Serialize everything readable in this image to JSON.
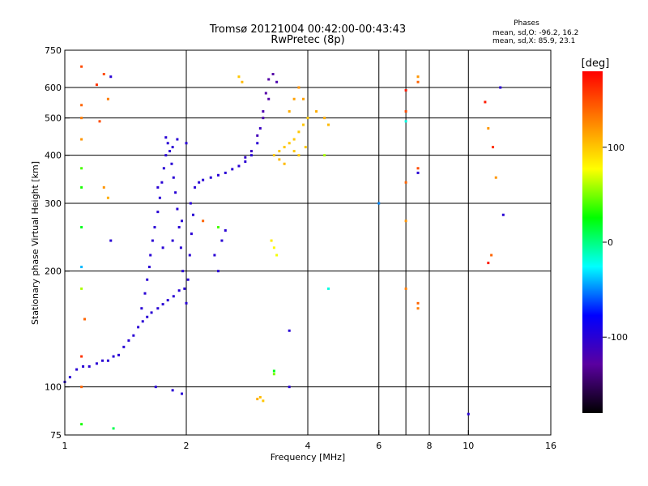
{
  "chart_data": {
    "type": "scatter",
    "title": "Tromsø 20121004 00:42:00-00:43:43",
    "subtitle": "RwPretec (8p)",
    "stats": {
      "heading": "Phases",
      "line1": "mean, sd,O: -96.2, 16.2",
      "line2": "mean, sd,X: 85.9, 23.1"
    },
    "xlabel": "Frequency [MHz]",
    "ylabel": "Stationary phase Virtual Height [km]",
    "x_scale": "log",
    "y_scale": "log",
    "xlim": [
      1,
      16
    ],
    "ylim": [
      75,
      750
    ],
    "x_ticks": [
      1,
      2,
      4,
      6,
      8,
      10,
      16
    ],
    "y_ticks": [
      75,
      100,
      200,
      300,
      400,
      500,
      600,
      750
    ],
    "x_grid": [
      2,
      4,
      6,
      7,
      8,
      10
    ],
    "y_grid": [
      100,
      200,
      300,
      400,
      500,
      600
    ],
    "grid": true,
    "colorbar": {
      "label": "[deg]",
      "range": [
        -180,
        180
      ],
      "ticks": [
        100,
        0,
        -100
      ],
      "stops": [
        "#000000",
        "#5a00a0",
        "#0000ff",
        "#00ffff",
        "#00ff00",
        "#ffff00",
        "#ff8000",
        "#ff0000"
      ]
    },
    "series": [
      {
        "points": [
          [
            1.0,
            103,
            -100
          ],
          [
            1.03,
            106,
            -100
          ],
          [
            1.07,
            111,
            -100
          ],
          [
            1.11,
            113,
            -100
          ],
          [
            1.15,
            113,
            -100
          ],
          [
            1.2,
            115,
            -100
          ],
          [
            1.24,
            117,
            -100
          ],
          [
            1.28,
            117,
            -100
          ],
          [
            1.32,
            120,
            -100
          ],
          [
            1.36,
            121,
            -100
          ],
          [
            1.4,
            127,
            -100
          ],
          [
            1.44,
            132,
            -100
          ],
          [
            1.48,
            136,
            -100
          ],
          [
            1.52,
            143,
            -100
          ],
          [
            1.56,
            148,
            -100
          ],
          [
            1.6,
            152,
            -100
          ],
          [
            1.64,
            156,
            -100
          ],
          [
            1.7,
            160,
            -100
          ],
          [
            1.75,
            164,
            -100
          ],
          [
            1.8,
            168,
            -100
          ],
          [
            1.86,
            172,
            -100
          ],
          [
            1.92,
            178,
            -100
          ],
          [
            1.55,
            160,
            -100
          ],
          [
            1.58,
            175,
            -100
          ],
          [
            1.6,
            190,
            -100
          ],
          [
            1.62,
            205,
            -100
          ],
          [
            1.63,
            220,
            -100
          ],
          [
            1.65,
            240,
            -100
          ],
          [
            1.67,
            260,
            -100
          ],
          [
            1.7,
            285,
            -100
          ],
          [
            1.72,
            310,
            -100
          ],
          [
            1.74,
            340,
            -100
          ],
          [
            1.76,
            370,
            -100
          ],
          [
            1.78,
            400,
            -100
          ],
          [
            1.8,
            430,
            -100
          ],
          [
            1.82,
            410,
            -100
          ],
          [
            1.84,
            380,
            -100
          ],
          [
            1.86,
            350,
            -100
          ],
          [
            1.88,
            320,
            -100
          ],
          [
            1.9,
            290,
            -100
          ],
          [
            1.92,
            260,
            -100
          ],
          [
            1.94,
            230,
            -100
          ],
          [
            1.96,
            200,
            -100
          ],
          [
            1.98,
            180,
            -100
          ],
          [
            2.0,
            165,
            -100
          ],
          [
            2.02,
            190,
            -100
          ],
          [
            2.04,
            220,
            -100
          ],
          [
            2.06,
            250,
            -100
          ],
          [
            2.08,
            280,
            -100
          ],
          [
            2.1,
            330,
            -100
          ],
          [
            2.15,
            340,
            -100
          ],
          [
            2.2,
            345,
            -100
          ],
          [
            2.3,
            350,
            -100
          ],
          [
            2.4,
            355,
            -100
          ],
          [
            2.5,
            360,
            -100
          ],
          [
            2.6,
            368,
            -100
          ],
          [
            2.7,
            375,
            -100
          ],
          [
            2.8,
            385,
            -100
          ],
          [
            2.9,
            400,
            -100
          ],
          [
            3.0,
            430,
            -100
          ],
          [
            3.05,
            470,
            -110
          ],
          [
            3.1,
            520,
            -120
          ],
          [
            3.15,
            580,
            -125
          ],
          [
            3.2,
            630,
            -125
          ],
          [
            3.28,
            650,
            -125
          ],
          [
            3.35,
            620,
            -120
          ],
          [
            3.2,
            560,
            -125
          ],
          [
            3.1,
            500,
            -120
          ],
          [
            3.0,
            450,
            -115
          ],
          [
            2.9,
            410,
            -110
          ],
          [
            2.8,
            395,
            -105
          ],
          [
            1.7,
            330,
            -100
          ],
          [
            1.75,
            230,
            -100
          ],
          [
            1.85,
            240,
            -100
          ],
          [
            1.95,
            270,
            -100
          ],
          [
            2.05,
            300,
            -100
          ],
          [
            2.0,
            430,
            -100
          ],
          [
            1.9,
            440,
            -100
          ],
          [
            1.85,
            420,
            -100
          ],
          [
            1.78,
            445,
            -100
          ],
          [
            2.35,
            220,
            -100
          ],
          [
            2.4,
            200,
            -100
          ],
          [
            2.45,
            240,
            -100
          ],
          [
            2.5,
            255,
            -100
          ],
          [
            1.68,
            100,
            -100
          ],
          [
            1.85,
            98,
            -100
          ],
          [
            1.95,
            96,
            -100
          ]
        ]
      },
      {
        "points": [
          [
            3.3,
            400,
            100
          ],
          [
            3.4,
            410,
            100
          ],
          [
            3.5,
            420,
            100
          ],
          [
            3.6,
            430,
            100
          ],
          [
            3.7,
            440,
            100
          ],
          [
            3.8,
            460,
            100
          ],
          [
            3.9,
            480,
            100
          ],
          [
            4.0,
            500,
            100
          ],
          [
            3.6,
            520,
            110
          ],
          [
            3.7,
            560,
            115
          ],
          [
            3.8,
            600,
            120
          ],
          [
            3.9,
            560,
            115
          ],
          [
            4.2,
            520,
            110
          ],
          [
            4.4,
            500,
            110
          ],
          [
            4.5,
            480,
            105
          ],
          [
            3.5,
            380,
            105
          ],
          [
            3.4,
            390,
            105
          ],
          [
            3.7,
            410,
            100
          ],
          [
            3.8,
            400,
            100
          ],
          [
            3.95,
            420,
            100
          ],
          [
            3.3,
            230,
            80
          ],
          [
            3.35,
            220,
            75
          ],
          [
            3.25,
            240,
            85
          ],
          [
            3.1,
            92,
            100
          ],
          [
            3.05,
            94,
            105
          ],
          [
            3.0,
            93,
            110
          ],
          [
            2.7,
            640,
            100
          ],
          [
            2.75,
            620,
            105
          ]
        ]
      },
      {
        "points": [
          [
            1.1,
            680,
            150
          ],
          [
            1.1,
            540,
            140
          ],
          [
            1.1,
            500,
            130
          ],
          [
            1.1,
            440,
            120
          ],
          [
            1.1,
            370,
            40
          ],
          [
            1.1,
            330,
            30
          ],
          [
            1.1,
            260,
            20
          ],
          [
            1.1,
            205,
            -40
          ],
          [
            1.1,
            180,
            60
          ],
          [
            1.12,
            150,
            140
          ],
          [
            1.1,
            120,
            160
          ],
          [
            1.1,
            100,
            140
          ],
          [
            1.1,
            80,
            30
          ],
          [
            1.25,
            650,
            150
          ],
          [
            1.2,
            610,
            160
          ],
          [
            1.3,
            640,
            -100
          ],
          [
            1.28,
            560,
            130
          ],
          [
            1.22,
            490,
            150
          ],
          [
            1.25,
            330,
            120
          ],
          [
            1.28,
            310,
            110
          ],
          [
            1.3,
            240,
            -100
          ],
          [
            1.32,
            78,
            10
          ],
          [
            7.0,
            590,
            170
          ],
          [
            7.0,
            520,
            150
          ],
          [
            7.0,
            490,
            -20
          ],
          [
            7.0,
            340,
            140
          ],
          [
            7.0,
            270,
            120
          ],
          [
            7.0,
            180,
            130
          ],
          [
            7.5,
            640,
            120
          ],
          [
            7.5,
            620,
            140
          ],
          [
            7.5,
            370,
            150
          ],
          [
            7.5,
            360,
            -100
          ],
          [
            7.5,
            165,
            140
          ],
          [
            7.5,
            160,
            130
          ],
          [
            11.0,
            550,
            170
          ],
          [
            11.2,
            470,
            120
          ],
          [
            11.5,
            420,
            160
          ],
          [
            11.7,
            350,
            120
          ],
          [
            12.0,
            600,
            -100
          ],
          [
            12.2,
            280,
            -100
          ],
          [
            11.4,
            220,
            140
          ],
          [
            11.2,
            210,
            170
          ],
          [
            6.0,
            300,
            -50
          ],
          [
            4.5,
            180,
            -20
          ],
          [
            4.4,
            400,
            60
          ],
          [
            3.6,
            100,
            -100
          ],
          [
            3.3,
            110,
            20
          ],
          [
            3.3,
            108,
            50
          ],
          [
            10.0,
            85,
            -100
          ],
          [
            2.4,
            260,
            40
          ],
          [
            2.2,
            270,
            140
          ],
          [
            3.6,
            140,
            -100
          ]
        ]
      }
    ]
  }
}
